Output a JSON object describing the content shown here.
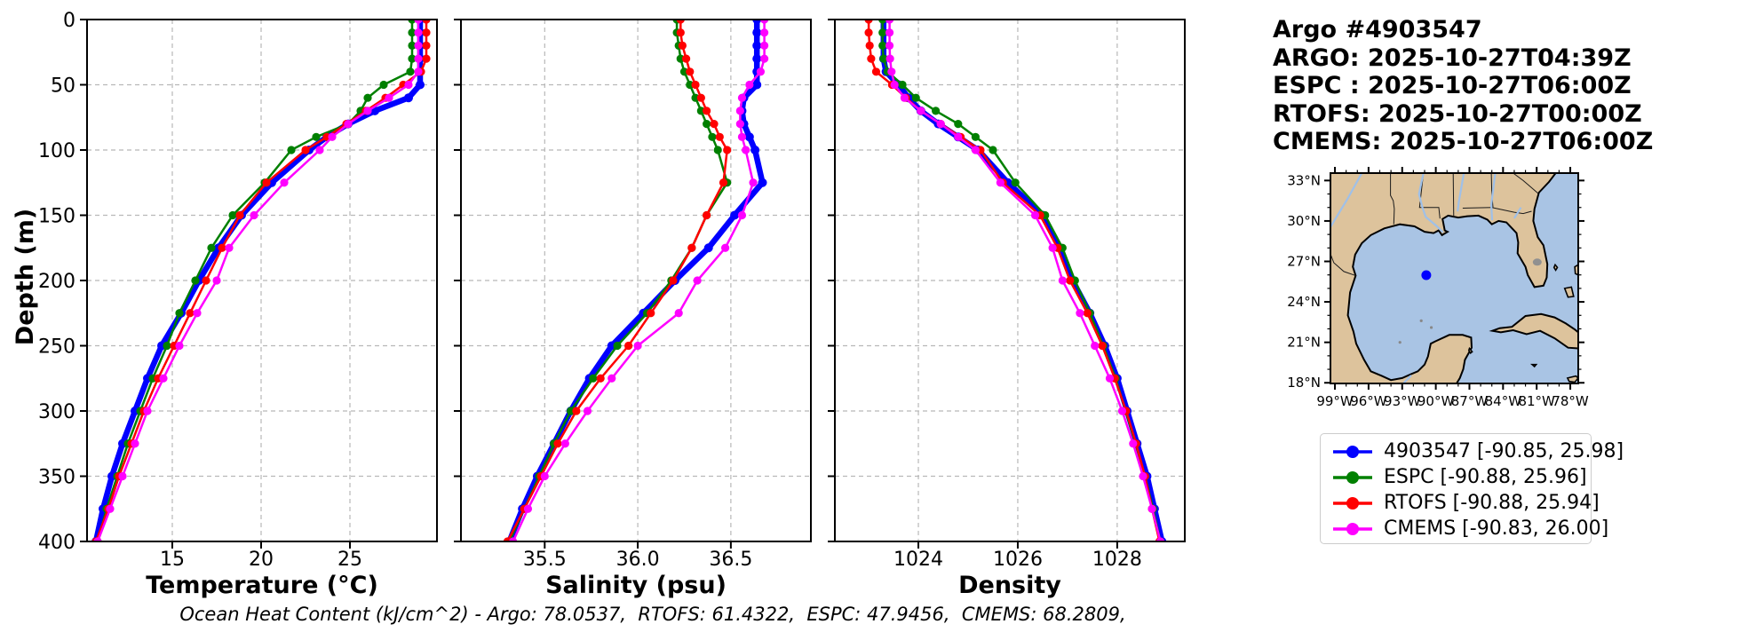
{
  "header": {
    "title": "Argo #4903547",
    "lines": [
      "ARGO: 2025-10-27T04:39Z",
      "ESPC : 2025-10-27T06:00Z",
      "RTOFS: 2025-10-27T00:00Z",
      "CMEMS: 2025-10-27T06:00Z"
    ]
  },
  "footer": {
    "ohc_text": "Ocean Heat Content (kJ/cm^2) - Argo: 78.0537,  RTOFS: 61.4322,  ESPC: 47.9456,  CMEMS: 68.2809,"
  },
  "colors": {
    "argo": "#0000ff",
    "espc": "#008000",
    "rtofs": "#ff0000",
    "cmems": "#ff00ff",
    "grid": "#b8b8b8",
    "land": "#ddc39c",
    "water": "#a9c4e4",
    "river": "#9fc0e8",
    "lake": "#909090"
  },
  "legend": {
    "items": [
      {
        "label": "4903547 [-90.85, 25.98]",
        "color_key": "argo"
      },
      {
        "label": "ESPC [-90.88, 25.96]",
        "color_key": "espc"
      },
      {
        "label": "RTOFS [-90.88, 25.94]",
        "color_key": "rtofs"
      },
      {
        "label": "CMEMS [-90.83, 26.00]",
        "color_key": "cmems"
      }
    ]
  },
  "map": {
    "float_label": "4903547",
    "float_lon": -90.85,
    "float_lat": 25.98,
    "lon_tick_values": [
      -99,
      -96,
      -93,
      -90,
      -87,
      -84,
      -81,
      -78
    ],
    "lon_tick_labels": [
      "99°W",
      "96°W",
      "93°W",
      "90°W",
      "87°W",
      "84°W",
      "81°W",
      "78°W"
    ],
    "lat_tick_values": [
      33,
      30,
      27,
      24,
      21,
      18
    ],
    "lat_tick_labels": [
      "33°N",
      "30°N",
      "27°N",
      "24°N",
      "21°N",
      "18°N"
    ],
    "lon_range": [
      -99.4,
      -77.29
    ],
    "lat_range": [
      17.95,
      33.55
    ]
  },
  "chart_data": [
    {
      "type": "line",
      "title": "",
      "xlabel": "Temperature (°C)",
      "ylabel": "Depth (m)",
      "xlim": [
        10.2,
        29.9
      ],
      "ylim": [
        400,
        0
      ],
      "grid": true,
      "legend_position": "right-panel",
      "xticks": [
        15,
        20,
        25
      ],
      "xtick_labels": [
        "15",
        "20",
        "25"
      ],
      "yticks": [
        0,
        50,
        100,
        150,
        200,
        250,
        300,
        350,
        400
      ],
      "depths": [
        0,
        10,
        20,
        30,
        40,
        50,
        60,
        70,
        80,
        90,
        100,
        125,
        150,
        175,
        200,
        225,
        250,
        275,
        300,
        325,
        350,
        375,
        400
      ],
      "series": [
        {
          "name": "4903547",
          "color_key": "argo",
          "values": [
            28.95,
            28.95,
            28.95,
            28.95,
            28.95,
            28.95,
            28.3,
            26.4,
            24.9,
            23.7,
            22.7,
            20.6,
            18.9,
            17.6,
            16.5,
            15.5,
            14.4,
            13.6,
            12.9,
            12.2,
            11.6,
            11.1,
            10.7
          ]
        },
        {
          "name": "ESPC",
          "color_key": "espc",
          "values": [
            28.5,
            28.5,
            28.5,
            28.5,
            28.4,
            26.9,
            26.0,
            25.6,
            24.9,
            23.1,
            21.7,
            20.2,
            18.4,
            17.2,
            16.3,
            15.4,
            14.7,
            13.9,
            13.2,
            12.5,
            11.9,
            11.3,
            10.8
          ]
        },
        {
          "name": "RTOFS",
          "color_key": "rtofs",
          "values": [
            29.3,
            29.3,
            29.3,
            29.3,
            29.0,
            28.0,
            27.0,
            25.9,
            24.8,
            23.7,
            22.5,
            20.3,
            18.8,
            17.8,
            16.9,
            16.0,
            15.1,
            14.2,
            13.4,
            12.7,
            12.0,
            11.4,
            10.7
          ]
        },
        {
          "name": "CMEMS",
          "color_key": "cmems",
          "values": [
            28.85,
            28.85,
            28.85,
            28.85,
            28.85,
            28.3,
            27.2,
            26.0,
            24.9,
            24.0,
            23.3,
            21.3,
            19.6,
            18.2,
            17.5,
            16.4,
            15.4,
            14.5,
            13.6,
            12.9,
            12.2,
            11.5,
            10.8
          ]
        }
      ]
    },
    {
      "type": "line",
      "title": "",
      "xlabel": "Salinity (psu)",
      "ylabel": "",
      "xlim": [
        35.05,
        36.93
      ],
      "ylim": [
        400,
        0
      ],
      "grid": true,
      "xticks": [
        35.5,
        36.0,
        36.5
      ],
      "xtick_labels": [
        "35.5",
        "36.0",
        "36.5"
      ],
      "yticks": [
        0,
        50,
        100,
        150,
        200,
        250,
        300,
        350,
        400
      ],
      "depths": [
        0,
        10,
        20,
        30,
        40,
        50,
        60,
        70,
        80,
        90,
        100,
        125,
        150,
        175,
        200,
        225,
        250,
        275,
        300,
        325,
        350,
        375,
        400
      ],
      "series": [
        {
          "name": "4903547",
          "color_key": "argo",
          "values": [
            36.64,
            36.64,
            36.64,
            36.64,
            36.64,
            36.64,
            36.57,
            36.56,
            36.57,
            36.6,
            36.63,
            36.67,
            36.52,
            36.38,
            36.2,
            36.03,
            35.86,
            35.74,
            35.64,
            35.55,
            35.46,
            35.38,
            35.31
          ]
        },
        {
          "name": "ESPC",
          "color_key": "espc",
          "values": [
            36.21,
            36.21,
            36.22,
            36.23,
            36.25,
            36.28,
            36.31,
            36.34,
            36.37,
            36.4,
            36.43,
            36.48,
            36.37,
            36.29,
            36.18,
            36.05,
            35.89,
            35.76,
            35.64,
            35.55,
            35.47,
            35.39,
            35.31
          ]
        },
        {
          "name": "RTOFS",
          "color_key": "rtofs",
          "values": [
            36.23,
            36.23,
            36.24,
            36.26,
            36.28,
            36.31,
            36.34,
            36.37,
            36.41,
            36.44,
            36.48,
            36.46,
            36.37,
            36.29,
            36.19,
            36.07,
            35.95,
            35.8,
            35.67,
            35.57,
            35.48,
            35.39,
            35.3
          ]
        },
        {
          "name": "CMEMS",
          "color_key": "cmems",
          "values": [
            36.68,
            36.68,
            36.68,
            36.68,
            36.66,
            36.6,
            36.56,
            36.55,
            36.55,
            36.56,
            36.58,
            36.62,
            36.56,
            36.47,
            36.32,
            36.22,
            36.0,
            35.86,
            35.73,
            35.61,
            35.5,
            35.41,
            35.33
          ]
        }
      ]
    },
    {
      "type": "line",
      "title": "",
      "xlabel": "Density",
      "ylabel": "",
      "xlim": [
        1022.32,
        1029.36
      ],
      "ylim": [
        400,
        0
      ],
      "grid": true,
      "xticks": [
        1024,
        1026,
        1028
      ],
      "xtick_labels": [
        "1024",
        "1026",
        "1028"
      ],
      "yticks": [
        0,
        50,
        100,
        150,
        200,
        250,
        300,
        350,
        400
      ],
      "depths": [
        0,
        10,
        20,
        30,
        40,
        50,
        60,
        70,
        80,
        90,
        100,
        125,
        150,
        175,
        200,
        225,
        250,
        275,
        300,
        325,
        350,
        375,
        400
      ],
      "series": [
        {
          "name": "4903547",
          "color_key": "argo",
          "values": [
            1023.3,
            1023.3,
            1023.3,
            1023.3,
            1023.35,
            1023.6,
            1023.8,
            1024.05,
            1024.4,
            1024.8,
            1025.2,
            1025.8,
            1026.5,
            1026.85,
            1027.1,
            1027.45,
            1027.75,
            1028.0,
            1028.2,
            1028.4,
            1028.6,
            1028.75,
            1028.9
          ]
        },
        {
          "name": "ESPC",
          "color_key": "espc",
          "values": [
            1023.28,
            1023.28,
            1023.28,
            1023.3,
            1023.38,
            1023.68,
            1023.95,
            1024.35,
            1024.8,
            1025.15,
            1025.5,
            1025.95,
            1026.55,
            1026.9,
            1027.15,
            1027.45,
            1027.72,
            1027.97,
            1028.17,
            1028.37,
            1028.56,
            1028.72,
            1028.87
          ]
        },
        {
          "name": "RTOFS",
          "color_key": "rtofs",
          "values": [
            1023.0,
            1023.0,
            1023.02,
            1023.05,
            1023.15,
            1023.47,
            1023.75,
            1024.05,
            1024.45,
            1024.85,
            1025.25,
            1025.7,
            1026.45,
            1026.8,
            1027.05,
            1027.4,
            1027.7,
            1027.95,
            1028.18,
            1028.38,
            1028.56,
            1028.7,
            1028.85
          ]
        },
        {
          "name": "CMEMS",
          "color_key": "cmems",
          "values": [
            1023.42,
            1023.42,
            1023.42,
            1023.43,
            1023.46,
            1023.52,
            1023.72,
            1024.05,
            1024.45,
            1024.8,
            1025.15,
            1025.65,
            1026.35,
            1026.7,
            1026.9,
            1027.25,
            1027.55,
            1027.85,
            1028.1,
            1028.32,
            1028.52,
            1028.7,
            1028.87
          ]
        }
      ]
    }
  ]
}
